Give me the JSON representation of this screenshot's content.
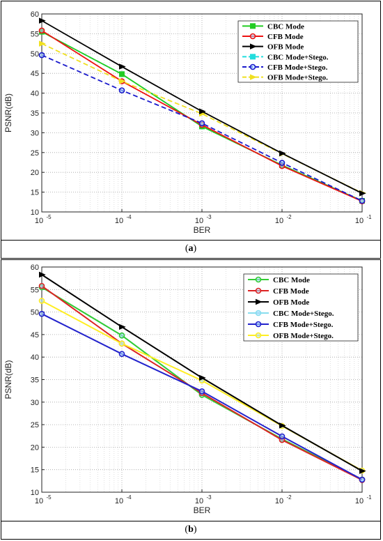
{
  "chart_data": [
    {
      "panel": "a",
      "type": "line",
      "caption": "a",
      "xlabel": "BER",
      "ylabel": "PSNR(dB)",
      "x": [
        1e-05,
        0.0001,
        0.001,
        0.01,
        0.1
      ],
      "xticks": [
        "10",
        "10",
        "10",
        "10",
        "10"
      ],
      "xtick_exps": [
        "-5",
        "-4",
        "-3",
        "-2",
        "-1"
      ],
      "xscale": "log",
      "ylim": [
        10,
        60
      ],
      "yticks": [
        10,
        15,
        20,
        25,
        30,
        35,
        40,
        45,
        50,
        55,
        60
      ],
      "grid": true,
      "legend_position": "top-right",
      "series": [
        {
          "name": "CBC Mode",
          "values": [
            55.5,
            44.8,
            31.6,
            21.8,
            12.8
          ],
          "color": "#22cc22",
          "dash": false,
          "marker": "square"
        },
        {
          "name": "CFB Mode",
          "values": [
            55.8,
            43.0,
            32.0,
            21.6,
            12.7
          ],
          "color": "#ee1111",
          "dash": false,
          "marker": "circle"
        },
        {
          "name": "OFB Mode",
          "values": [
            58.3,
            46.7,
            35.4,
            24.8,
            14.7
          ],
          "color": "#000000",
          "dash": false,
          "marker": "triangle"
        },
        {
          "name": "CBC Mode+Stego.",
          "values": [
            55.5,
            44.8,
            31.6,
            21.8,
            12.8
          ],
          "color": "#22dddd",
          "dash": true,
          "marker": "square"
        },
        {
          "name": "CFB Mode+Stego.",
          "values": [
            49.6,
            40.7,
            32.4,
            22.4,
            12.8
          ],
          "color": "#1a1acc",
          "dash": true,
          "marker": "circle"
        },
        {
          "name": "OFB Mode+Stego.",
          "values": [
            52.5,
            43.0,
            34.8,
            24.7,
            14.8
          ],
          "color": "#f0e020",
          "dash": true,
          "marker": "triangle"
        }
      ]
    },
    {
      "panel": "b",
      "type": "line",
      "caption": "b",
      "xlabel": "BER",
      "ylabel": "PSNR(dB)",
      "x": [
        1e-05,
        0.0001,
        0.001,
        0.01,
        0.1
      ],
      "xticks": [
        "10",
        "10",
        "10",
        "10",
        "10"
      ],
      "xtick_exps": [
        "-5",
        "-4",
        "-3",
        "-2",
        "-1"
      ],
      "xscale": "log",
      "ylim": [
        10,
        60
      ],
      "yticks": [
        10,
        15,
        20,
        25,
        30,
        35,
        40,
        45,
        50,
        55,
        60
      ],
      "grid": true,
      "legend_position": "top-right",
      "series": [
        {
          "name": "CBC Mode",
          "values": [
            55.5,
            44.8,
            31.6,
            21.8,
            12.8
          ],
          "color": "#33cc33",
          "dash": false,
          "marker": "circle"
        },
        {
          "name": "CFB Mode",
          "values": [
            55.8,
            43.0,
            32.0,
            21.6,
            12.7
          ],
          "color": "#dd2222",
          "dash": false,
          "marker": "circle"
        },
        {
          "name": "OFB Mode",
          "values": [
            58.3,
            46.7,
            35.4,
            24.8,
            14.7
          ],
          "color": "#000000",
          "dash": false,
          "marker": "triangle"
        },
        {
          "name": "CBC Mode+Stego.",
          "values": [
            55.5,
            44.8,
            31.6,
            21.8,
            12.8
          ],
          "color": "#88ddee",
          "dash": false,
          "marker": "circle"
        },
        {
          "name": "CFB Mode+Stego.",
          "values": [
            49.6,
            40.7,
            32.4,
            22.4,
            12.8
          ],
          "color": "#2222cc",
          "dash": false,
          "marker": "circle"
        },
        {
          "name": "OFB Mode+Stego.",
          "values": [
            52.5,
            43.0,
            34.8,
            24.7,
            14.8
          ],
          "color": "#ffee22",
          "dash": false,
          "marker": "circle"
        }
      ]
    }
  ]
}
